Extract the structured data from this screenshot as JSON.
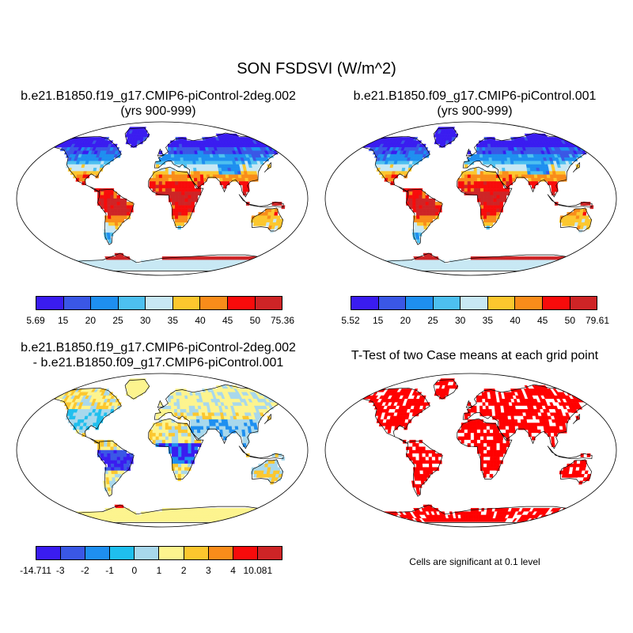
{
  "title": "SON FSDSVI (W/m^2)",
  "panels": [
    {
      "title_line1": "b.e21.B1850.f19_g17.CMIP6-piControl-2deg.002",
      "title_line2": "(yrs 900-999)",
      "type": "field",
      "colorbar": {
        "colors": [
          "#3a1cf0",
          "#3a57e6",
          "#1e8ff0",
          "#4dc0f0",
          "#c8e8f4",
          "#fcc72e",
          "#f98c1a",
          "#f80b0b",
          "#ce2426"
        ],
        "labels": [
          "5.69",
          "15",
          "20",
          "25",
          "30",
          "35",
          "40",
          "45",
          "50",
          "75.36"
        ]
      }
    },
    {
      "title_line1": "b.e21.B1850.f09_g17.CMIP6-piControl.001",
      "title_line2": "(yrs 900-999)",
      "type": "field",
      "colorbar": {
        "colors": [
          "#3a1cf0",
          "#3a57e6",
          "#1e8ff0",
          "#4dc0f0",
          "#c8e8f4",
          "#fcc72e",
          "#f98c1a",
          "#f80b0b",
          "#ce2426"
        ],
        "labels": [
          "5.52",
          "15",
          "20",
          "25",
          "30",
          "35",
          "40",
          "45",
          "50",
          "79.61"
        ]
      }
    },
    {
      "title_line1": "b.e21.B1850.f19_g17.CMIP6-piControl-2deg.002",
      "title_line2": "- b.e21.B1850.f09_g17.CMIP6-piControl.001",
      "type": "diff",
      "colorbar": {
        "colors": [
          "#3a1cf0",
          "#3a57e6",
          "#1e8ff0",
          "#1fbfee",
          "#a8d8ec",
          "#fdf48e",
          "#fcc72e",
          "#f98c1a",
          "#f80b0b",
          "#ce2426"
        ],
        "labels": [
          "-14.711",
          "-3",
          "-2",
          "-1",
          "0",
          "1",
          "2",
          "3",
          "4",
          "10.081"
        ]
      }
    },
    {
      "title_line1": "T-Test of two Case means at each grid point",
      "title_line2": "",
      "type": "ttest",
      "note": "Cells are significant at 0.1 level"
    }
  ]
}
